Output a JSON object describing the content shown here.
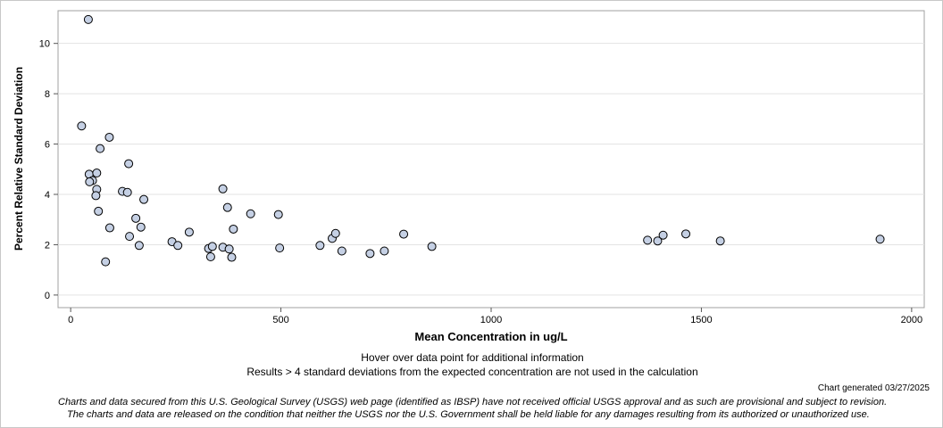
{
  "chart_data": {
    "type": "scatter",
    "title": "",
    "xlabel": "Mean Concentration in ug/L",
    "ylabel": "Percent Relative Standard Deviation",
    "xlim": [
      -30,
      2030
    ],
    "ylim": [
      -0.5,
      11.3
    ],
    "xticks": [
      0,
      500,
      1000,
      1500,
      2000
    ],
    "yticks": [
      0,
      2,
      4,
      6,
      8,
      10
    ],
    "grid": true,
    "marker_fill": "#c5d0e4",
    "marker_edge": "#000000",
    "points": [
      {
        "x": 42,
        "y": 10.95
      },
      {
        "x": 26,
        "y": 6.72
      },
      {
        "x": 92,
        "y": 6.27
      },
      {
        "x": 70,
        "y": 5.82
      },
      {
        "x": 138,
        "y": 5.22
      },
      {
        "x": 44,
        "y": 4.8
      },
      {
        "x": 62,
        "y": 4.85
      },
      {
        "x": 52,
        "y": 4.55
      },
      {
        "x": 45,
        "y": 4.5
      },
      {
        "x": 62,
        "y": 4.2
      },
      {
        "x": 60,
        "y": 3.95
      },
      {
        "x": 123,
        "y": 4.12
      },
      {
        "x": 135,
        "y": 4.08
      },
      {
        "x": 174,
        "y": 3.8
      },
      {
        "x": 66,
        "y": 3.33
      },
      {
        "x": 155,
        "y": 3.05
      },
      {
        "x": 93,
        "y": 2.67
      },
      {
        "x": 167,
        "y": 2.7
      },
      {
        "x": 140,
        "y": 2.33
      },
      {
        "x": 163,
        "y": 1.97
      },
      {
        "x": 83,
        "y": 1.32
      },
      {
        "x": 241,
        "y": 2.12
      },
      {
        "x": 255,
        "y": 1.97
      },
      {
        "x": 282,
        "y": 2.5
      },
      {
        "x": 328,
        "y": 1.85
      },
      {
        "x": 337,
        "y": 1.93
      },
      {
        "x": 333,
        "y": 1.52
      },
      {
        "x": 362,
        "y": 4.22
      },
      {
        "x": 373,
        "y": 3.48
      },
      {
        "x": 387,
        "y": 2.62
      },
      {
        "x": 362,
        "y": 1.9
      },
      {
        "x": 377,
        "y": 1.83
      },
      {
        "x": 383,
        "y": 1.5
      },
      {
        "x": 428,
        "y": 3.23
      },
      {
        "x": 494,
        "y": 3.2
      },
      {
        "x": 497,
        "y": 1.87
      },
      {
        "x": 593,
        "y": 1.97
      },
      {
        "x": 622,
        "y": 2.25
      },
      {
        "x": 630,
        "y": 2.45
      },
      {
        "x": 645,
        "y": 1.75
      },
      {
        "x": 712,
        "y": 1.65
      },
      {
        "x": 746,
        "y": 1.75
      },
      {
        "x": 792,
        "y": 2.42
      },
      {
        "x": 859,
        "y": 1.93
      },
      {
        "x": 1372,
        "y": 2.18
      },
      {
        "x": 1396,
        "y": 2.15
      },
      {
        "x": 1409,
        "y": 2.38
      },
      {
        "x": 1463,
        "y": 2.43
      },
      {
        "x": 1545,
        "y": 2.15
      },
      {
        "x": 1925,
        "y": 2.22
      }
    ]
  },
  "notes": {
    "hover": "Hover over data point for additional information",
    "results": "Results > 4 standard deviations from the expected concentration are not used in the calculation",
    "generated": "Chart generated 03/27/2025",
    "disclaimer_line1": "Charts and data secured from this U.S. Geological Survey (USGS) web page (identified as IBSP) have not received official USGS approval and as such are provisional and subject to revision.",
    "disclaimer_line2": "The charts and data are released on the condition that neither the USGS nor the U.S. Government shall be held liable for any damages resulting from its authorized or unauthorized use."
  }
}
